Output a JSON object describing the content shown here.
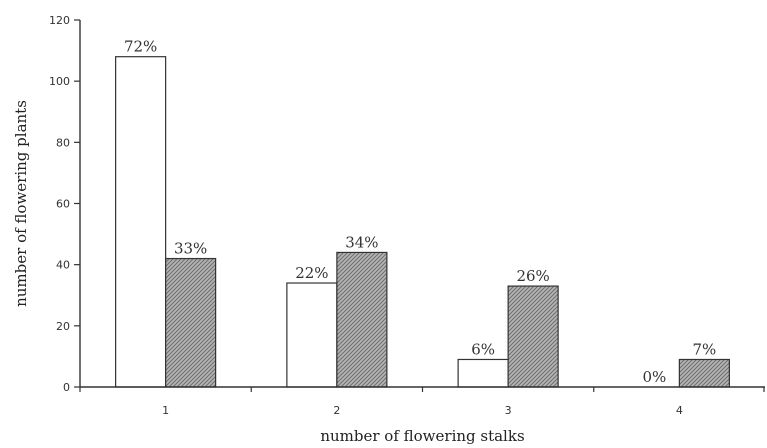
{
  "chart_data": {
    "type": "bar",
    "xlabel": "number of flowering stalks",
    "ylabel": "number of flowering plants",
    "categories": [
      "1",
      "2",
      "3",
      "4"
    ],
    "ylim": [
      0,
      120
    ],
    "yticks": [
      "0",
      "20",
      "40",
      "60",
      "80",
      "100",
      "120"
    ],
    "grid": false,
    "series": [
      {
        "values": [
          108,
          34,
          9,
          0
        ],
        "labels": [
          "72%",
          "22%",
          "6%",
          "0%"
        ],
        "color": "#ffffff"
      },
      {
        "values": [
          42,
          44,
          33,
          9
        ],
        "labels": [
          "33%",
          "34%",
          "26%",
          "7%"
        ],
        "color": "#9a9a9a"
      }
    ]
  }
}
